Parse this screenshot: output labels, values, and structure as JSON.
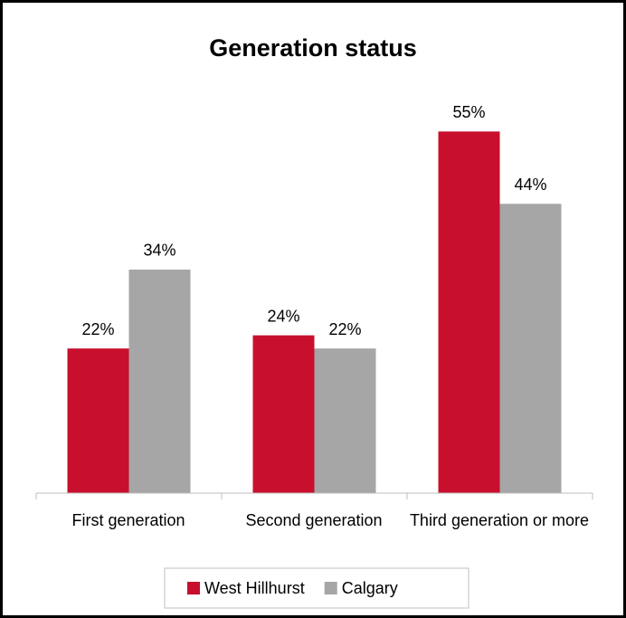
{
  "chart_data": {
    "type": "bar",
    "title": "Generation status",
    "categories": [
      "First generation",
      "Second generation",
      "Third generation or more"
    ],
    "series": [
      {
        "name": "West Hillhurst",
        "color": "#c8102e",
        "values": [
          22,
          24,
          55
        ],
        "value_labels": [
          "22%",
          "24%",
          "55%"
        ]
      },
      {
        "name": "Calgary",
        "color": "#a6a6a6",
        "values": [
          34,
          22,
          44
        ],
        "value_labels": [
          "34%",
          "22%",
          "44%"
        ]
      }
    ],
    "ylim": [
      0,
      60
    ],
    "legend": "bottom"
  }
}
